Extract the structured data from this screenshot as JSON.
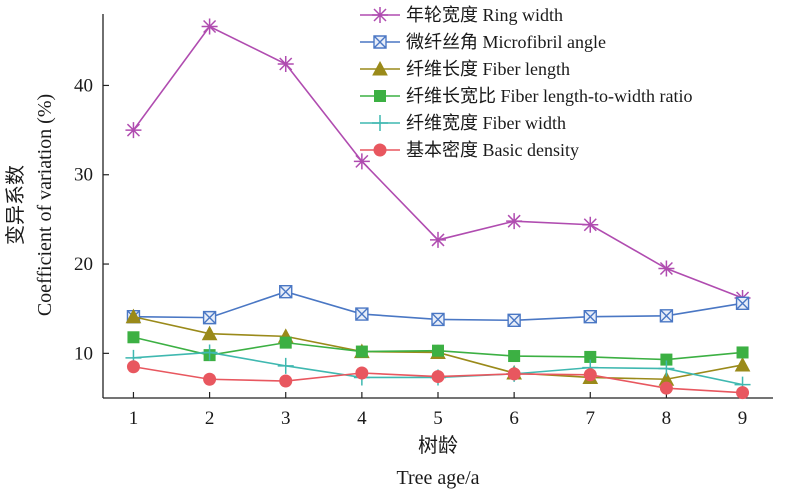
{
  "chart_data": {
    "type": "line",
    "title": "",
    "x": [
      1,
      2,
      3,
      4,
      5,
      6,
      7,
      8,
      9
    ],
    "xlim": [
      0.6,
      9.4
    ],
    "ylim": [
      5,
      48
    ],
    "yticks": [
      10,
      20,
      30,
      40
    ],
    "xlabel_cn": "树龄",
    "xlabel": "Tree age/a",
    "ylabel_cn": "变异系数",
    "ylabel": "Coefficient of variation (%)",
    "legend_position": "top-right",
    "series": [
      {
        "name": "年轮宽度 Ring width",
        "color": "#b04cb0",
        "marker": "asterisk",
        "values": [
          35.0,
          46.6,
          42.4,
          31.5,
          22.7,
          24.8,
          24.4,
          19.5,
          16.2
        ]
      },
      {
        "name": "微纤丝角 Microfibril angle",
        "color": "#4a77c4",
        "marker": "square-x",
        "values": [
          14.1,
          14.0,
          16.9,
          14.4,
          13.8,
          13.7,
          14.1,
          14.2,
          15.6
        ]
      },
      {
        "name": "纤维长度 Fiber length",
        "color": "#9a8a1a",
        "marker": "triangle",
        "values": [
          14.1,
          12.2,
          11.9,
          10.2,
          10.1,
          7.8,
          7.3,
          7.1,
          8.7
        ]
      },
      {
        "name": "纤维长宽比 Fiber length-to-width ratio",
        "color": "#3cb043",
        "marker": "square",
        "values": [
          11.8,
          9.8,
          11.2,
          10.2,
          10.3,
          9.7,
          9.6,
          9.3,
          10.1
        ]
      },
      {
        "name": "纤维宽度 Fiber width",
        "color": "#3fb8b0",
        "marker": "plus",
        "values": [
          9.5,
          10.1,
          8.6,
          7.3,
          7.3,
          7.7,
          8.4,
          8.3,
          6.5
        ]
      },
      {
        "name": "基本密度 Basic density",
        "color": "#e8575f",
        "marker": "circle",
        "values": [
          8.5,
          7.1,
          6.9,
          7.8,
          7.4,
          7.7,
          7.6,
          6.1,
          5.6
        ]
      }
    ]
  }
}
